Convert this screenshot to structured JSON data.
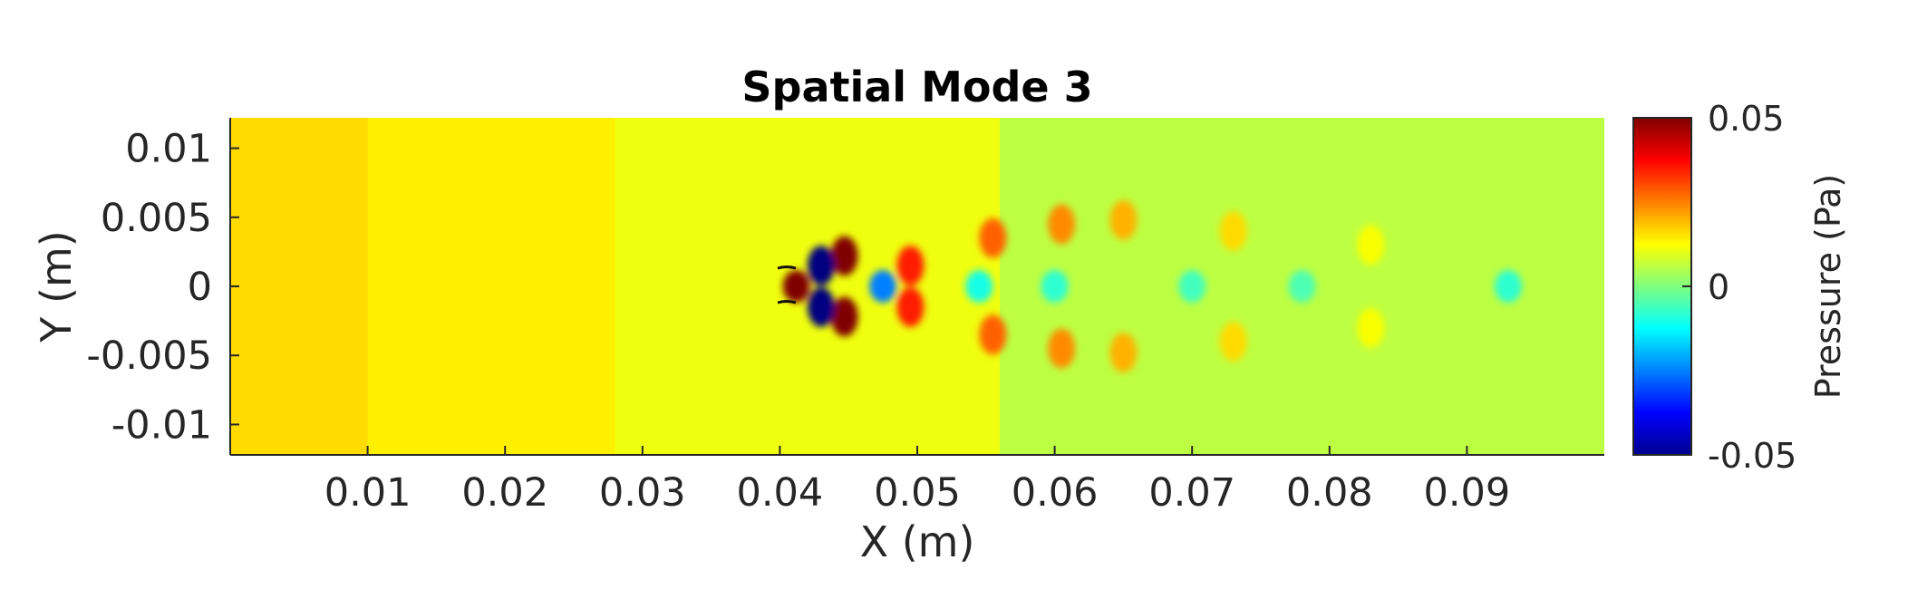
{
  "chart_data": {
    "type": "heatmap",
    "title": "Spatial Mode 3",
    "xlabel": "X (m)",
    "ylabel": "Y (m)",
    "xlim": [
      0,
      0.1
    ],
    "ylim": [
      -0.0122,
      0.0122
    ],
    "x_ticks": [
      0.01,
      0.02,
      0.03,
      0.04,
      0.05,
      0.06,
      0.07,
      0.08,
      0.09
    ],
    "x_tick_labels": [
      "0.01",
      "0.02",
      "0.03",
      "0.04",
      "0.05",
      "0.06",
      "0.07",
      "0.08",
      "0.09"
    ],
    "y_ticks": [
      0.01,
      0.005,
      0,
      -0.005,
      -0.01
    ],
    "y_tick_labels": [
      "0.01",
      "0.005",
      "0",
      "-0.005",
      "-0.01"
    ],
    "colorbar": {
      "label": "Pressure (Pa)",
      "limits": [
        -0.05,
        0.05
      ],
      "ticks": [
        0.05,
        0,
        -0.05
      ],
      "tick_labels": [
        "0.05",
        "0",
        "-0.05"
      ],
      "colormap": "jet"
    },
    "background_pressure_bands": [
      {
        "x_from": 0,
        "x_to": 0.01,
        "value": 0.016
      },
      {
        "x_from": 0.01,
        "x_to": 0.028,
        "value": 0.014
      },
      {
        "x_from": 0.028,
        "x_to": 0.056,
        "value": 0.011
      },
      {
        "x_from": 0.056,
        "x_to": 0.1,
        "value": 0.006
      }
    ],
    "features": [
      {
        "x": 0.0412,
        "y": 0.0,
        "value": 0.05
      },
      {
        "x": 0.0447,
        "y": 0.0022,
        "value": 0.05
      },
      {
        "x": 0.0447,
        "y": -0.0022,
        "value": 0.05
      },
      {
        "x": 0.043,
        "y": 0.0015,
        "value": -0.05
      },
      {
        "x": 0.043,
        "y": -0.0015,
        "value": -0.05
      },
      {
        "x": 0.0475,
        "y": 0.0,
        "value": -0.025
      },
      {
        "x": 0.0495,
        "y": 0.0015,
        "value": 0.035
      },
      {
        "x": 0.0495,
        "y": -0.0015,
        "value": 0.035
      },
      {
        "x": 0.0555,
        "y": 0.0035,
        "value": 0.028
      },
      {
        "x": 0.0555,
        "y": -0.0035,
        "value": 0.028
      },
      {
        "x": 0.0545,
        "y": 0.0,
        "value": -0.01
      },
      {
        "x": 0.0605,
        "y": 0.0045,
        "value": 0.024
      },
      {
        "x": 0.0605,
        "y": -0.0045,
        "value": 0.024
      },
      {
        "x": 0.06,
        "y": 0.0,
        "value": -0.008
      },
      {
        "x": 0.065,
        "y": 0.0048,
        "value": 0.02
      },
      {
        "x": 0.065,
        "y": -0.0048,
        "value": 0.02
      },
      {
        "x": 0.07,
        "y": 0.0,
        "value": -0.006
      },
      {
        "x": 0.073,
        "y": 0.004,
        "value": 0.016
      },
      {
        "x": 0.073,
        "y": -0.004,
        "value": 0.016
      },
      {
        "x": 0.078,
        "y": 0.0,
        "value": -0.005
      },
      {
        "x": 0.083,
        "y": 0.003,
        "value": 0.012
      },
      {
        "x": 0.083,
        "y": -0.003,
        "value": 0.012
      },
      {
        "x": 0.093,
        "y": 0.0,
        "value": -0.008
      }
    ]
  }
}
